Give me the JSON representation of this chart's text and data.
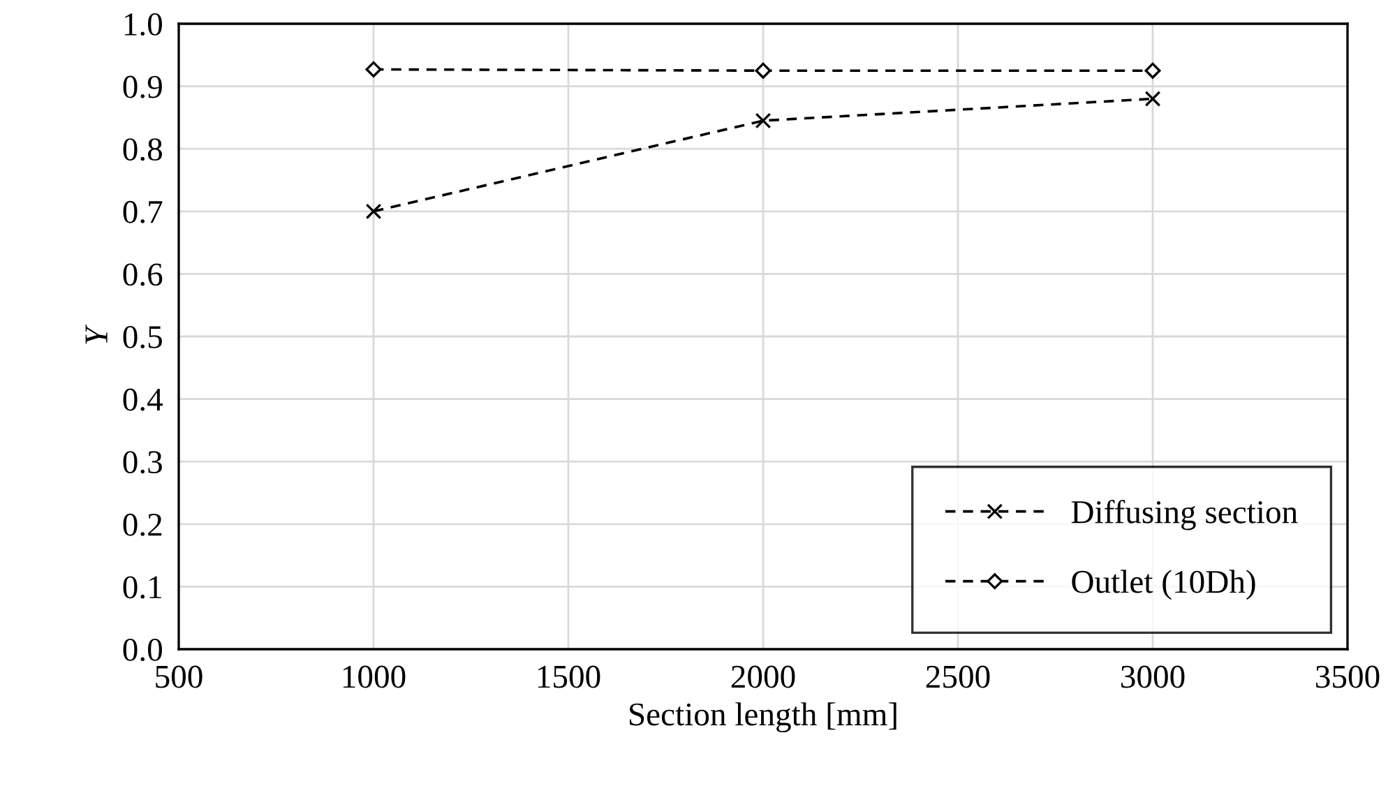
{
  "chart_data": {
    "type": "line",
    "xlabel": "Section length [mm]",
    "ylabel": "Y",
    "x": [
      1000,
      2000,
      3000
    ],
    "series": [
      {
        "name": "Diffusing section",
        "color": "#000000",
        "values": [
          0.7,
          0.845,
          0.88
        ],
        "marker": "cross",
        "line_style": "dashed"
      },
      {
        "name": "Outlet (10Dh)",
        "color": "#000000",
        "values": [
          0.927,
          0.925,
          0.925
        ],
        "marker": "diamond",
        "line_style": "dashed"
      }
    ],
    "xlim": [
      500,
      3500
    ],
    "xticks": [
      500,
      1000,
      1500,
      2000,
      2500,
      3000,
      3500
    ],
    "ylim": [
      0.0,
      1.0
    ],
    "yticks": [
      {
        "value": 0.0,
        "label": "0.0"
      },
      {
        "value": 0.1,
        "label": "0.1"
      },
      {
        "value": 0.2,
        "label": "0.2"
      },
      {
        "value": 0.3,
        "label": "0.3"
      },
      {
        "value": 0.4,
        "label": "0.4"
      },
      {
        "value": 0.5,
        "label": "0.5"
      },
      {
        "value": 0.6,
        "label": "0.6"
      },
      {
        "value": 0.7,
        "label": "0.7"
      },
      {
        "value": 0.8,
        "label": "0.8"
      },
      {
        "value": 0.9,
        "label": "0.9"
      },
      {
        "value": 1.0,
        "label": "1.0"
      }
    ],
    "grid": true,
    "legend": "bottom right"
  }
}
